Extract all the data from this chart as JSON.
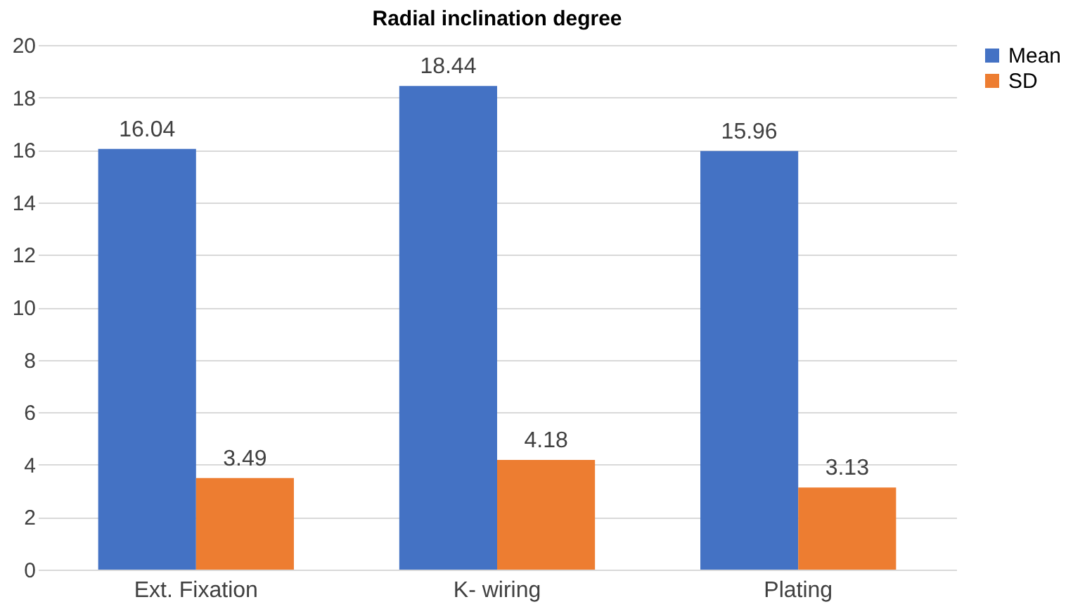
{
  "chart_data": {
    "type": "bar",
    "title": "Radial inclination degree",
    "categories": [
      "Ext. Fixation",
      "K- wiring",
      "Plating"
    ],
    "series": [
      {
        "name": "Mean",
        "color": "#4472c4",
        "values": [
          16.04,
          18.44,
          15.96
        ]
      },
      {
        "name": "SD",
        "color": "#ed7d31",
        "values": [
          3.49,
          4.18,
          3.13
        ]
      }
    ],
    "ylim": [
      0,
      20
    ],
    "yticks": [
      0,
      2,
      4,
      6,
      8,
      10,
      12,
      14,
      16,
      18,
      20
    ],
    "grid": "y",
    "legend": "right",
    "data_labels": true
  }
}
